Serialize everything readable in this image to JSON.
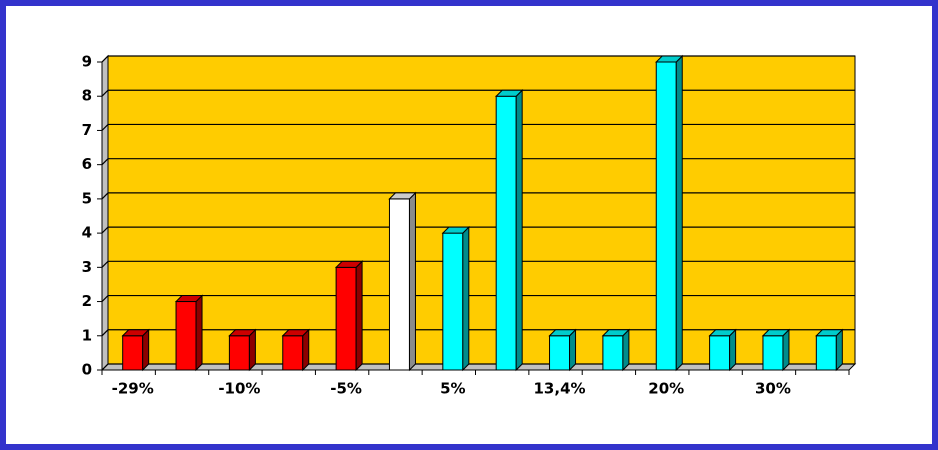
{
  "chart_data": {
    "type": "bar3d",
    "categories": [
      "-29%",
      null,
      "-10%",
      null,
      "-5%",
      null,
      "5%",
      null,
      "13,4%",
      null,
      "20%",
      null,
      "30%",
      null
    ],
    "values": [
      1,
      2,
      1,
      1,
      3,
      5,
      4,
      8,
      1,
      1,
      9,
      1,
      1,
      1
    ],
    "colors": [
      "#ff0000",
      "#ff0000",
      "#ff0000",
      "#ff0000",
      "#ff0000",
      "#ffffff",
      "#00ffff",
      "#00ffff",
      "#00ffff",
      "#00ffff",
      "#00ffff",
      "#00ffff",
      "#00ffff",
      "#00ffff"
    ],
    "ylim": [
      0,
      9
    ],
    "yticks": [
      0,
      1,
      2,
      3,
      4,
      5,
      6,
      7,
      8,
      9
    ],
    "grid": true,
    "background": "#ffcc00"
  }
}
